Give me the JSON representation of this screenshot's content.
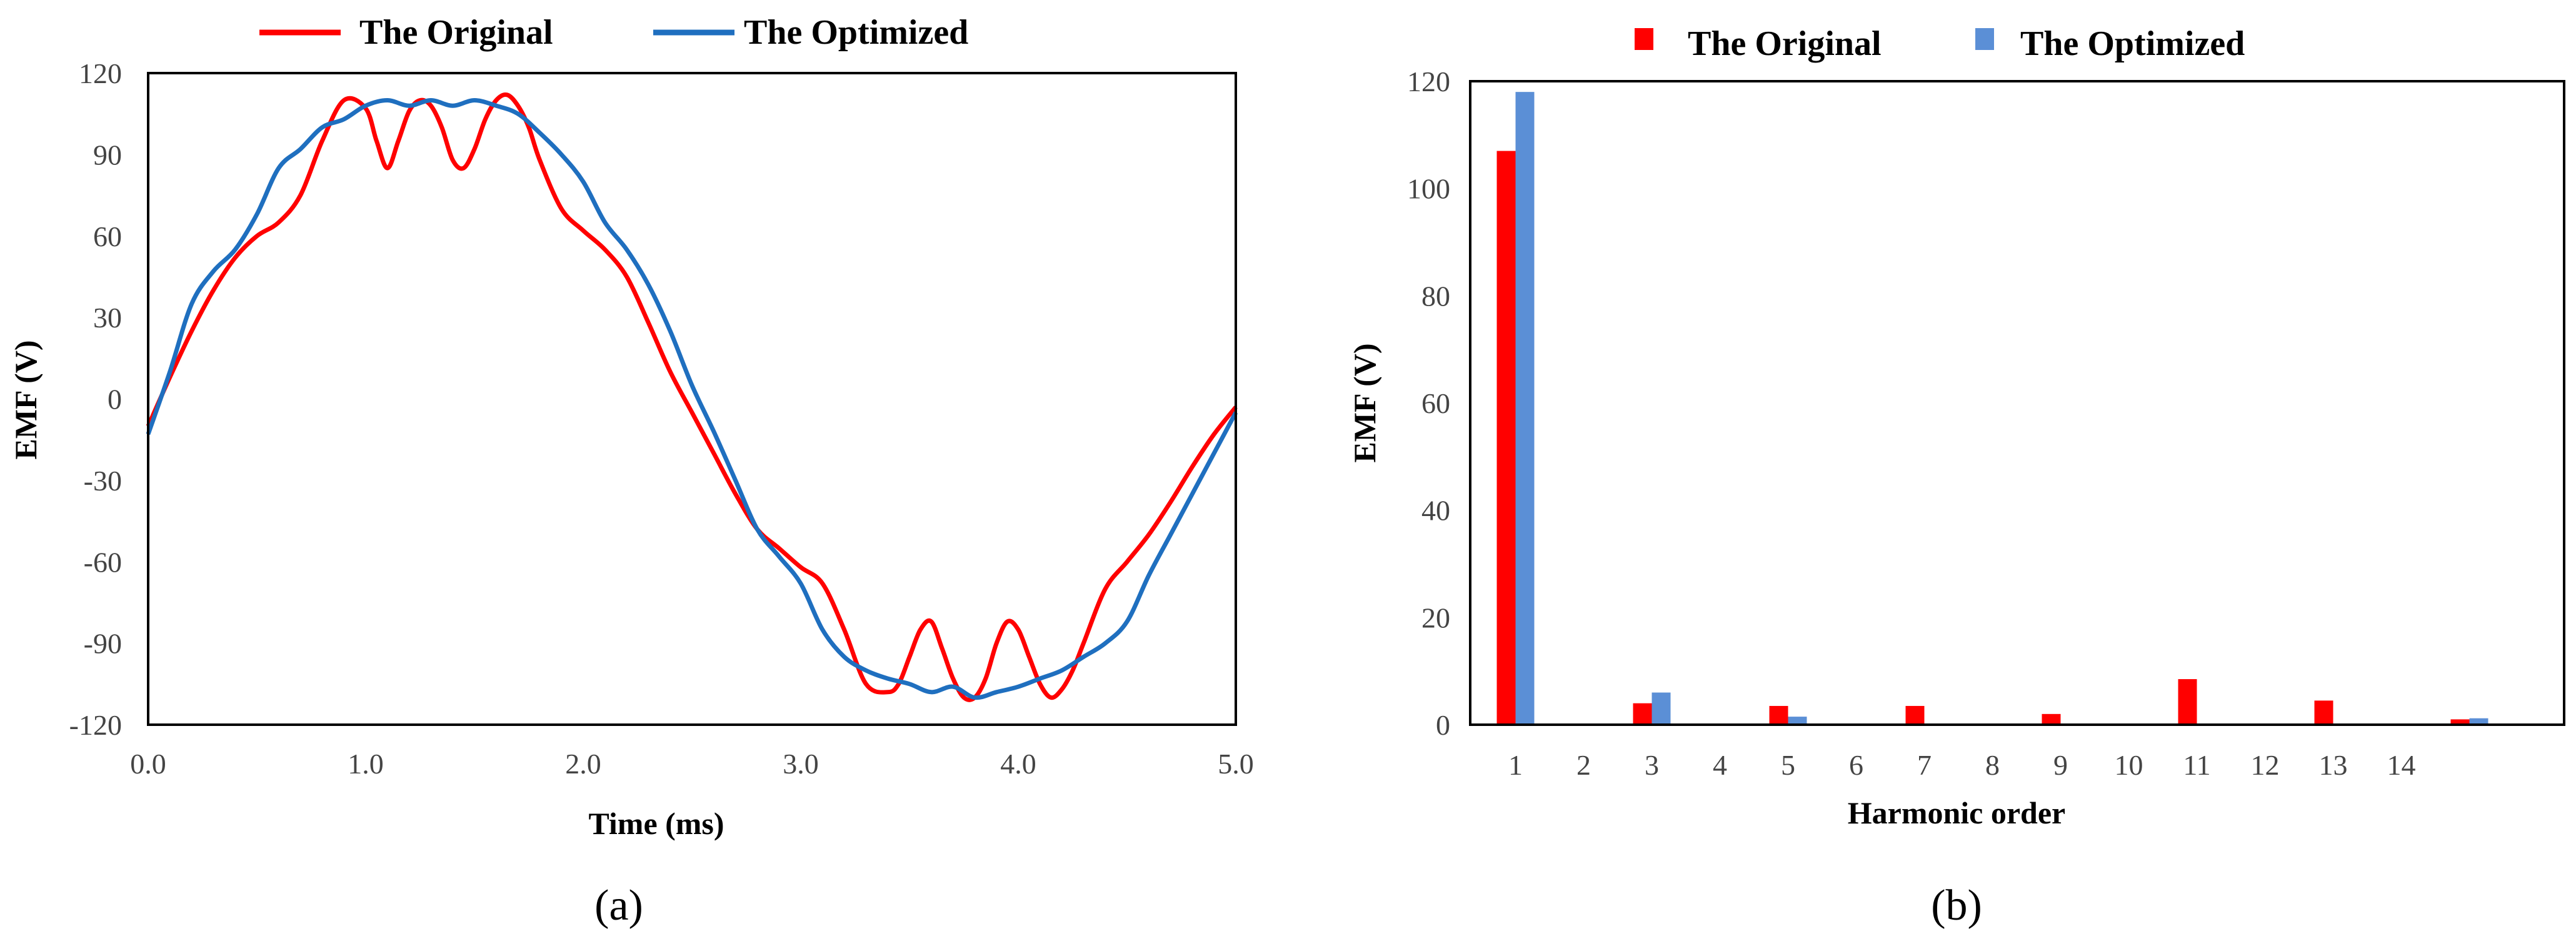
{
  "colors": {
    "original": "#ff0000",
    "optimized": "#1f6fbf",
    "optimized_bar": "#5b8fd6"
  },
  "chart_data": [
    {
      "type": "line",
      "panel_label": "(a)",
      "xlabel": "Time (ms)",
      "ylabel": "EMF (V)",
      "xlim": [
        0,
        5
      ],
      "ylim": [
        -120,
        120
      ],
      "x_ticks": [
        "0.0",
        "1.0",
        "2.0",
        "3.0",
        "4.0",
        "5.0"
      ],
      "y_ticks": [
        "120",
        "90",
        "60",
        "30",
        "0",
        "-30",
        "-60",
        "-90",
        "-120"
      ],
      "legend": [
        "The Original",
        "The Optimized"
      ],
      "series": [
        {
          "name": "The Original",
          "x": [
            0,
            0.1,
            0.2,
            0.3,
            0.4,
            0.5,
            0.6,
            0.7,
            0.8,
            0.9,
            1.0,
            1.05,
            1.1,
            1.15,
            1.2,
            1.25,
            1.3,
            1.35,
            1.4,
            1.45,
            1.5,
            1.55,
            1.6,
            1.65,
            1.7,
            1.75,
            1.8,
            1.9,
            2.0,
            2.1,
            2.2,
            2.3,
            2.4,
            2.5,
            2.6,
            2.7,
            2.8,
            2.9,
            3.0,
            3.1,
            3.2,
            3.3,
            3.4,
            3.45,
            3.5,
            3.55,
            3.6,
            3.65,
            3.7,
            3.75,
            3.8,
            3.85,
            3.9,
            3.95,
            4.0,
            4.05,
            4.1,
            4.15,
            4.2,
            4.25,
            4.3,
            4.4,
            4.5,
            4.6,
            4.7,
            4.8,
            4.9,
            5.0
          ],
          "values": [
            -10,
            8,
            25,
            40,
            52,
            60,
            65,
            75,
            95,
            110,
            107,
            95,
            85,
            95,
            106,
            110,
            108,
            100,
            88,
            85,
            92,
            103,
            110,
            112,
            108,
            100,
            88,
            70,
            62,
            55,
            45,
            28,
            10,
            -5,
            -20,
            -35,
            -48,
            -55,
            -62,
            -68,
            -85,
            -105,
            -108,
            -105,
            -95,
            -85,
            -82,
            -92,
            -103,
            -110,
            -110,
            -103,
            -90,
            -82,
            -85,
            -95,
            -105,
            -110,
            -107,
            -100,
            -90,
            -70,
            -60,
            -50,
            -38,
            -25,
            -13,
            -3
          ]
        },
        {
          "name": "The Optimized",
          "x": [
            0,
            0.1,
            0.2,
            0.3,
            0.4,
            0.5,
            0.6,
            0.7,
            0.8,
            0.9,
            1.0,
            1.1,
            1.2,
            1.3,
            1.4,
            1.5,
            1.6,
            1.7,
            1.8,
            1.9,
            2.0,
            2.1,
            2.2,
            2.3,
            2.4,
            2.5,
            2.6,
            2.7,
            2.8,
            2.9,
            3.0,
            3.1,
            3.2,
            3.3,
            3.4,
            3.5,
            3.6,
            3.7,
            3.8,
            3.9,
            4.0,
            4.1,
            4.2,
            4.3,
            4.4,
            4.5,
            4.6,
            4.7,
            4.8,
            4.9,
            5.0
          ],
          "values": [
            -13,
            10,
            35,
            47,
            55,
            68,
            85,
            92,
            100,
            103,
            108,
            110,
            108,
            110,
            108,
            110,
            108,
            105,
            98,
            90,
            80,
            65,
            55,
            42,
            25,
            5,
            -12,
            -30,
            -48,
            -58,
            -68,
            -85,
            -95,
            -100,
            -103,
            -105,
            -108,
            -106,
            -110,
            -108,
            -106,
            -103,
            -100,
            -95,
            -90,
            -82,
            -65,
            -50,
            -35,
            -20,
            -5
          ]
        }
      ]
    },
    {
      "type": "bar",
      "panel_label": "(b)",
      "xlabel": "Harmonic order",
      "ylabel": "EMF (V)",
      "ylim": [
        0,
        120
      ],
      "y_ticks": [
        "120",
        "100",
        "80",
        "60",
        "40",
        "20",
        "0"
      ],
      "categories": [
        "1",
        "2",
        "3",
        "4",
        "5",
        "6",
        "7",
        "8",
        "9",
        "10",
        "11",
        "12",
        "13",
        "14",
        ""
      ],
      "legend": [
        "The Original",
        "The Optimized"
      ],
      "series": [
        {
          "name": "The Original",
          "values": [
            107,
            0,
            4,
            0,
            3.5,
            0,
            3.5,
            0,
            2,
            0,
            8.5,
            0,
            4.5,
            0,
            1
          ]
        },
        {
          "name": "The Optimized",
          "values": [
            118,
            0,
            6,
            0,
            1.5,
            0,
            0,
            0,
            0,
            0,
            0,
            0,
            0,
            0,
            1.2
          ]
        }
      ]
    }
  ]
}
